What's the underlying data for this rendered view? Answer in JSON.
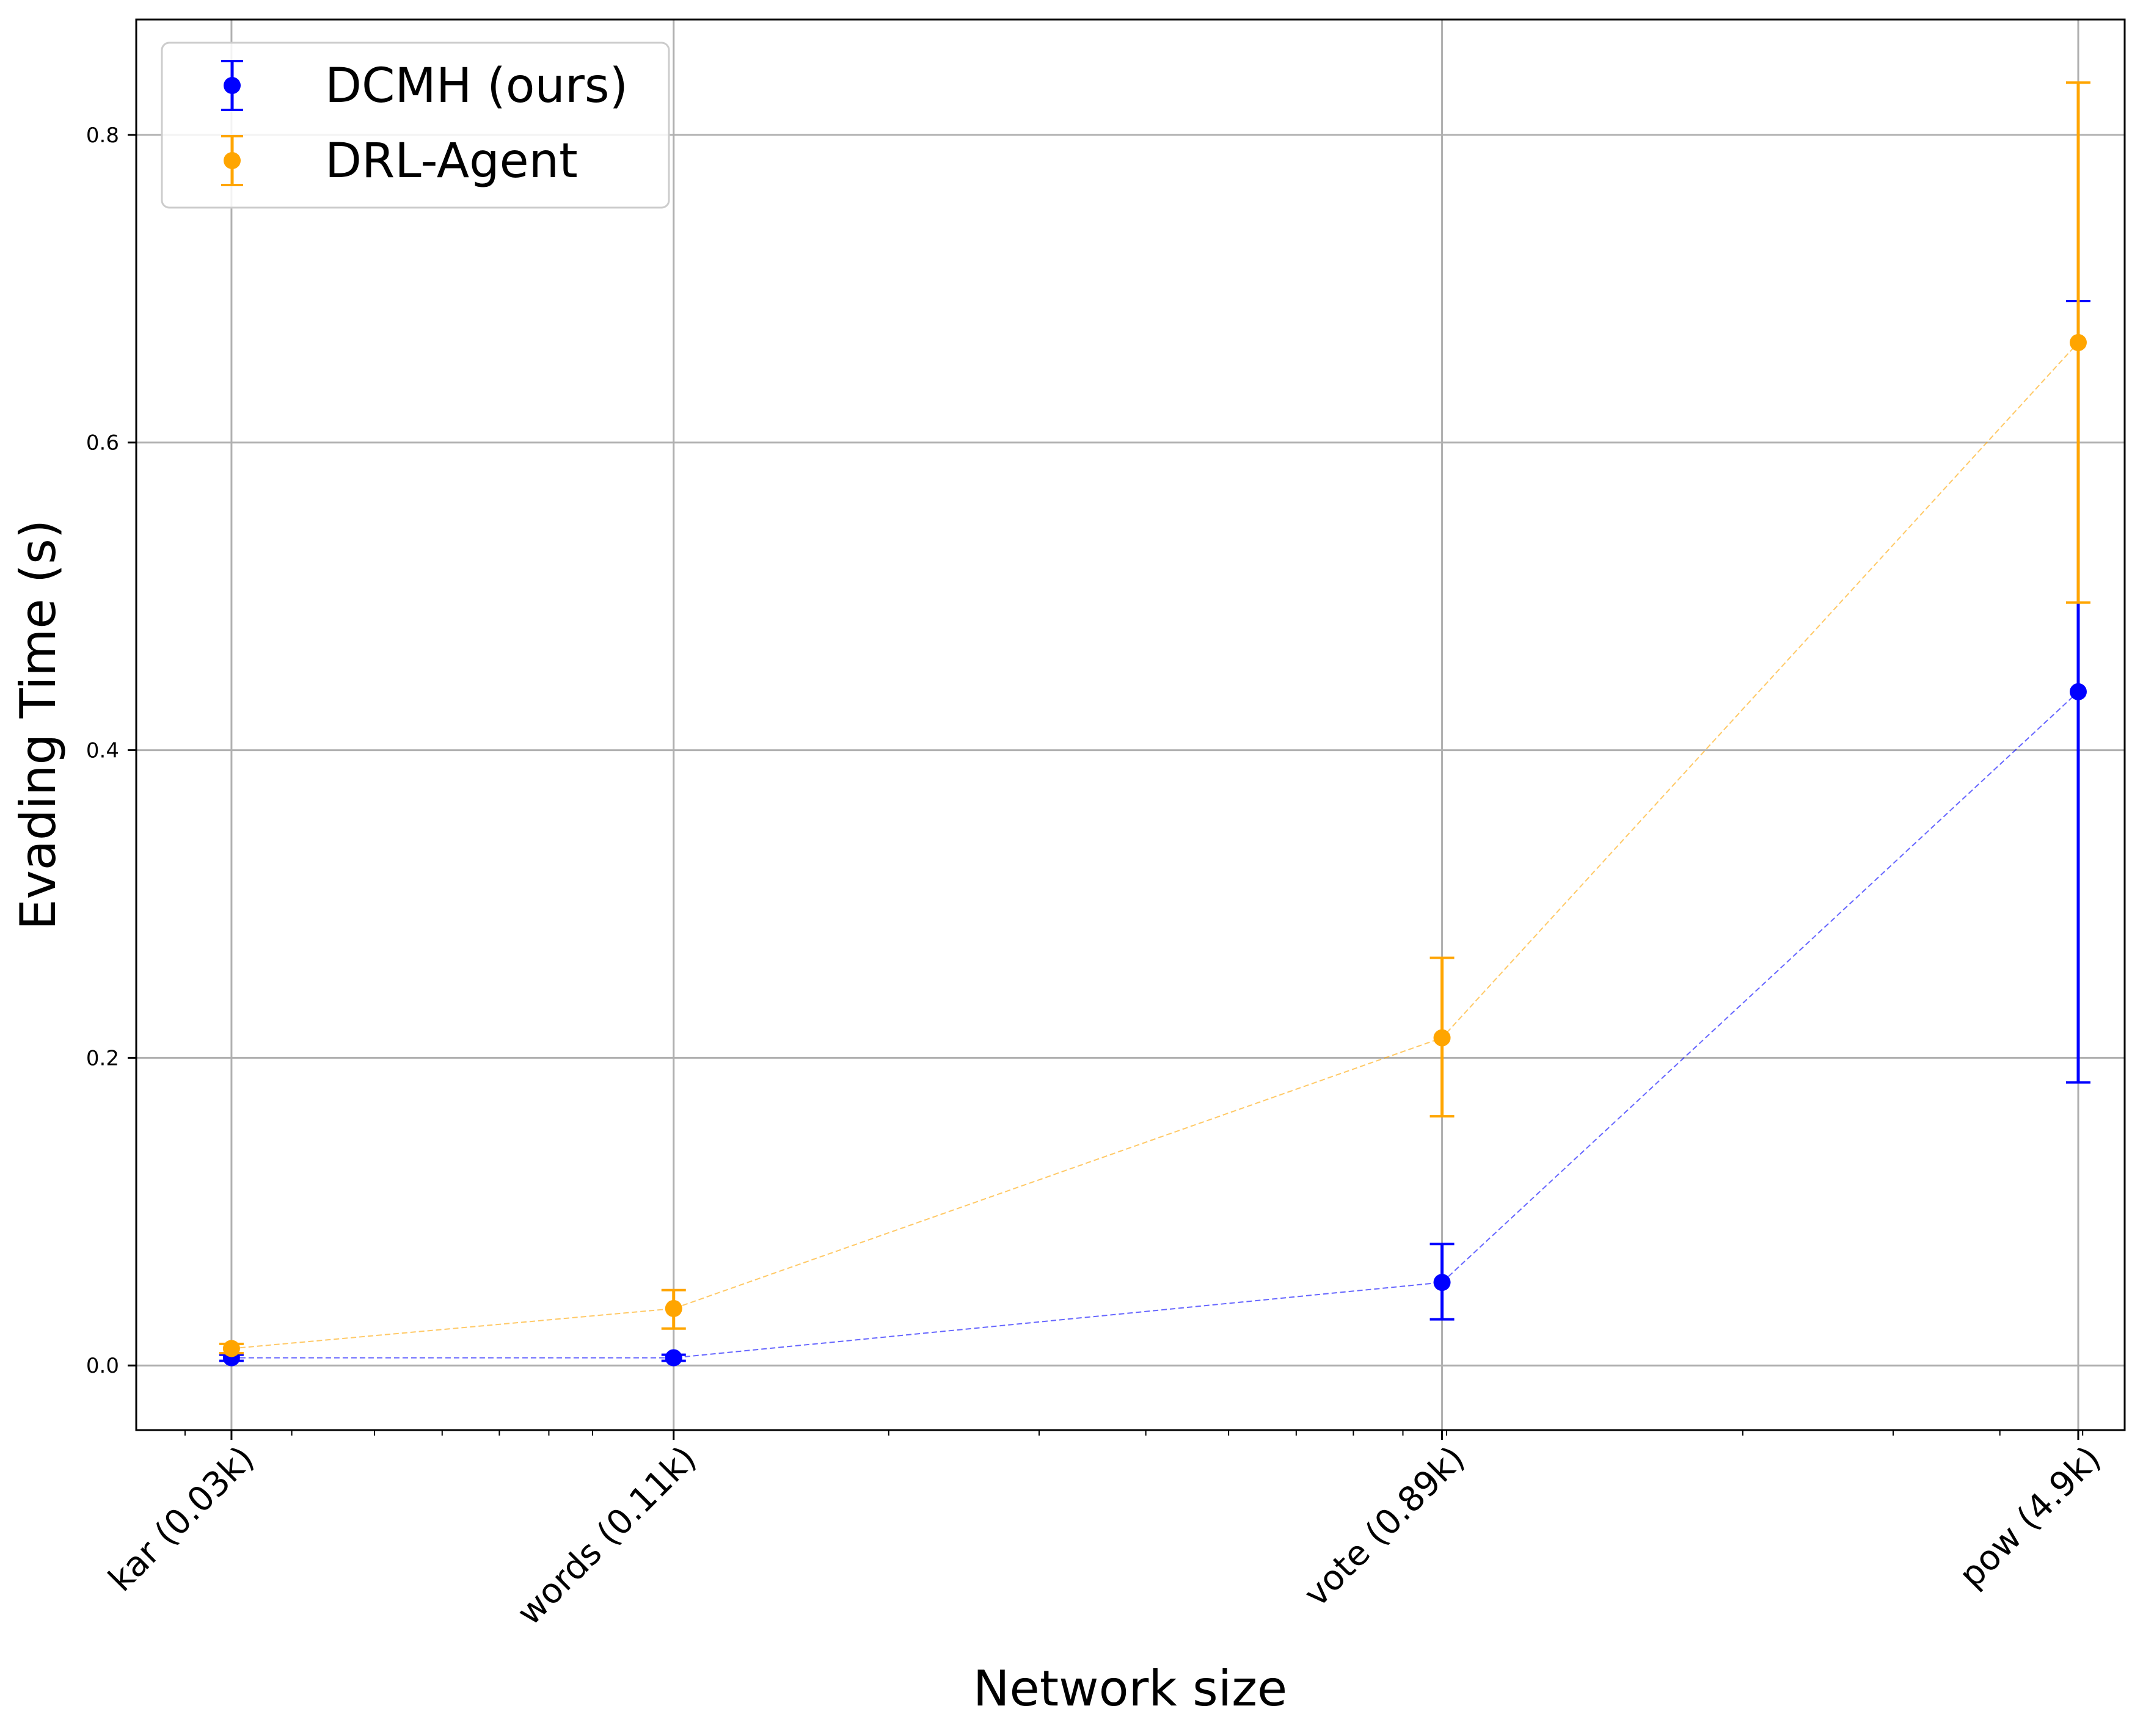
{
  "chart_data": {
    "type": "scatter",
    "xlabel": "Network size",
    "ylabel": "Evading Time (s)",
    "x_scale": "log",
    "x_categories": [
      "kar (0.03k)",
      "words (0.11k)",
      "vote (0.89k)",
      "pow (4.9k)"
    ],
    "x_values": [
      0.034,
      0.112,
      0.889,
      4.941
    ],
    "xlim": [
      0.0263,
      5.6
    ],
    "ylim": [
      -0.042,
      0.875
    ],
    "y_ticks": [
      0.0,
      0.2,
      0.4,
      0.6,
      0.8
    ],
    "y_tick_labels": [
      "0.0",
      "0.2",
      "0.4",
      "0.6",
      "0.8"
    ],
    "grid": true,
    "legend_position": "top-left",
    "series": [
      {
        "name": "DCMH (ours)",
        "color": "#0000ff",
        "values": [
          0.005,
          0.005,
          0.054,
          0.438
        ],
        "error_low": [
          0.003,
          0.003,
          0.03,
          0.184
        ],
        "error_high": [
          0.007,
          0.007,
          0.079,
          0.692
        ]
      },
      {
        "name": "DRL-Agent",
        "color": "#ffa500",
        "values": [
          0.011,
          0.037,
          0.213,
          0.665
        ],
        "error_low": [
          0.008,
          0.024,
          0.162,
          0.496
        ],
        "error_high": [
          0.014,
          0.049,
          0.265,
          0.834
        ]
      }
    ]
  }
}
